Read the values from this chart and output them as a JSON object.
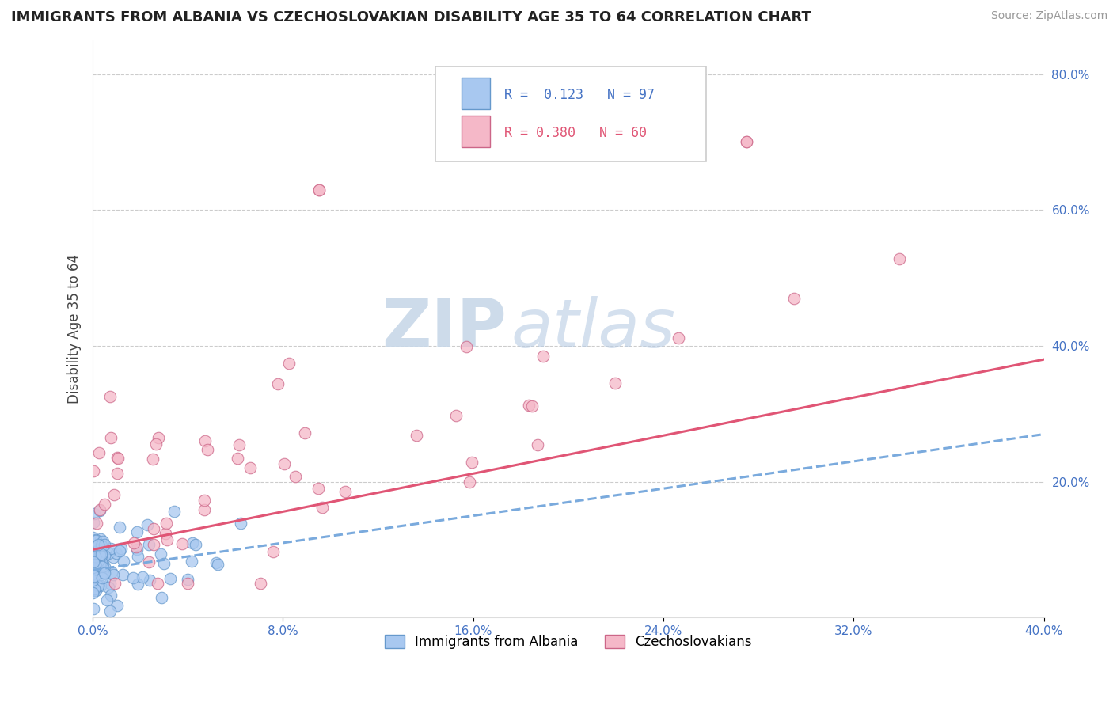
{
  "title": "IMMIGRANTS FROM ALBANIA VS CZECHOSLOVAKIAN DISABILITY AGE 35 TO 64 CORRELATION CHART",
  "source": "Source: ZipAtlas.com",
  "ylabel": "Disability Age 35 to 64",
  "xlim": [
    0.0,
    0.4
  ],
  "ylim": [
    0.0,
    0.85
  ],
  "xtick_vals": [
    0.0,
    0.08,
    0.16,
    0.24,
    0.32,
    0.4
  ],
  "xtick_labels": [
    "0.0%",
    "8.0%",
    "16.0%",
    "24.0%",
    "32.0%",
    "40.0%"
  ],
  "ytick_vals": [
    0.2,
    0.4,
    0.6,
    0.8
  ],
  "ytick_labels": [
    "20.0%",
    "40.0%",
    "60.0%",
    "80.0%"
  ],
  "albania_R": 0.123,
  "albania_N": 97,
  "czech_R": 0.38,
  "czech_N": 60,
  "albania_color": "#a8c8f0",
  "albania_edge": "#6699cc",
  "czech_color": "#f5b8c8",
  "czech_edge": "#cc6688",
  "albania_line_color": "#7aaadd",
  "czech_line_color": "#e05575",
  "grid_color": "#cccccc",
  "tick_color": "#4472c4",
  "watermark_zip": "ZIP",
  "watermark_atlas": "atlas",
  "legend_label_albania": "Immigrants from Albania",
  "legend_label_czech": "Czechoslovakians"
}
